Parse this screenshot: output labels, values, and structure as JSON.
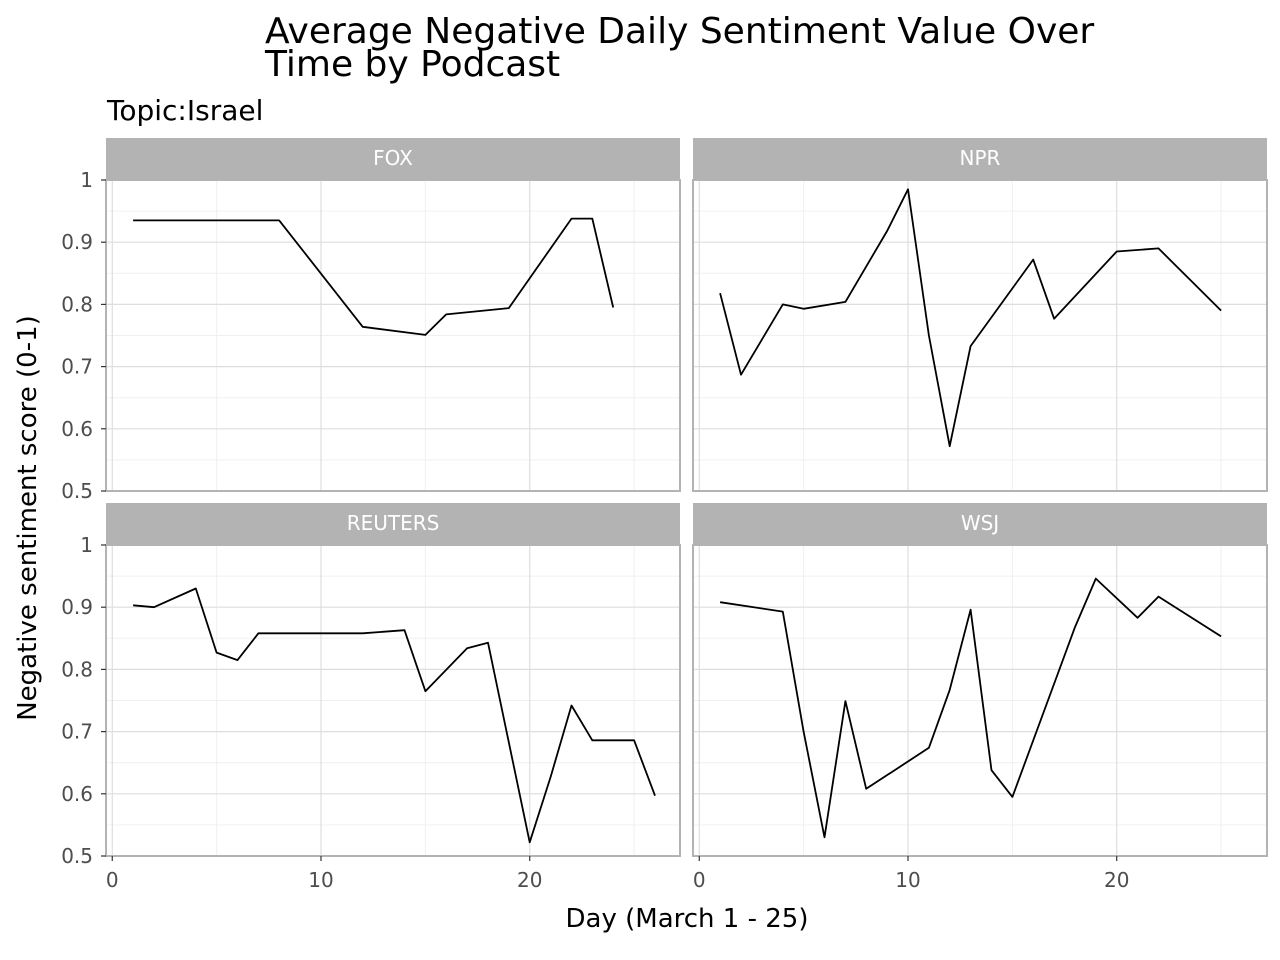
{
  "chart_data": {
    "type": "line",
    "title_lines": [
      "Average Negative Daily Sentiment Value Over",
      "Time by Podcast"
    ],
    "subtitle": "Topic:Israel",
    "xlabel": "Day (March 1 - 25)",
    "ylabel": "Negative sentiment score (0-1)",
    "xlim": [
      -0.3,
      27.2
    ],
    "ylim": [
      0.5,
      1.0
    ],
    "x_ticks": [
      0,
      10,
      20
    ],
    "y_ticks": [
      0.5,
      0.6,
      0.7,
      0.8,
      0.9,
      1.0
    ],
    "y_tick_labels": [
      "0.5",
      "0.6",
      "0.7",
      "0.8",
      "0.9",
      "1"
    ],
    "grid": true,
    "facet_layout": "2x2",
    "colors": {
      "line": "#000000",
      "strip_bg": "#b3b3b3",
      "strip_text": "#ffffff",
      "grid_major": "#dedede",
      "grid_minor": "#f0f0f0",
      "panel_border": "#b3b3b3"
    },
    "panels": [
      {
        "name": "FOX",
        "x": [
          1,
          8,
          12,
          15,
          16,
          19,
          22,
          23,
          24
        ],
        "y": [
          0.935,
          0.935,
          0.764,
          0.751,
          0.784,
          0.794,
          0.938,
          0.938,
          0.795
        ]
      },
      {
        "name": "NPR",
        "x": [
          1,
          2,
          4,
          5,
          7,
          9,
          10,
          11,
          12,
          13,
          16,
          17,
          20,
          22,
          25
        ],
        "y": [
          0.818,
          0.687,
          0.8,
          0.793,
          0.804,
          0.918,
          0.985,
          0.75,
          0.572,
          0.733,
          0.872,
          0.777,
          0.885,
          0.89,
          0.79
        ]
      },
      {
        "name": "REUTERS",
        "x": [
          1,
          2,
          4,
          5,
          6,
          7,
          12,
          14,
          15,
          17,
          18,
          20,
          21,
          22,
          23,
          25,
          26
        ],
        "y": [
          0.903,
          0.9,
          0.93,
          0.827,
          0.815,
          0.858,
          0.858,
          0.863,
          0.765,
          0.834,
          0.843,
          0.522,
          0.627,
          0.742,
          0.686,
          0.686,
          0.597
        ]
      },
      {
        "name": "WSJ",
        "x": [
          1,
          4,
          5,
          6,
          7,
          8,
          11,
          12,
          13,
          14,
          15,
          18,
          19,
          21,
          22,
          25
        ],
        "y": [
          0.908,
          0.893,
          0.7,
          0.53,
          0.749,
          0.608,
          0.674,
          0.767,
          0.896,
          0.638,
          0.595,
          0.868,
          0.946,
          0.883,
          0.917,
          0.853
        ]
      }
    ]
  }
}
